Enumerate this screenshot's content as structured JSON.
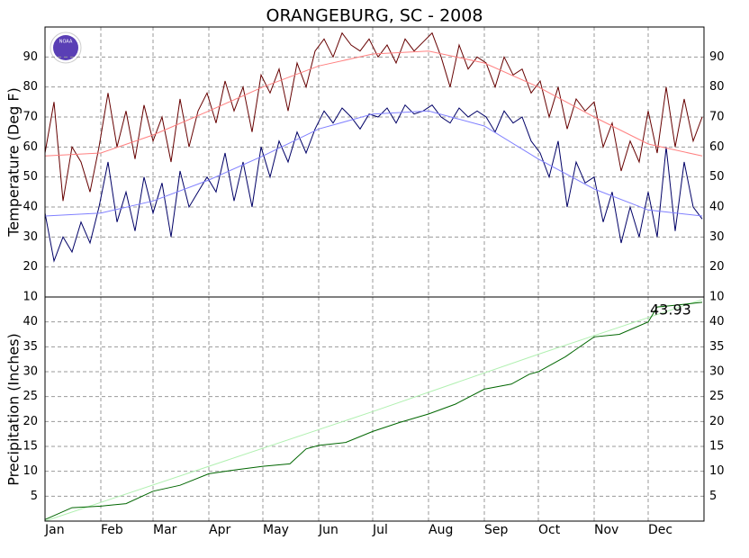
{
  "chart_data": [
    {
      "type": "line",
      "title": "ORANGEBURG, SC - 2008",
      "y_label": "Temperature (Deg F)",
      "logo_text": "NOAA",
      "xlim": [
        1,
        367
      ],
      "ylim": [
        10,
        100
      ],
      "yticks": [
        10,
        20,
        30,
        40,
        50,
        60,
        70,
        80,
        90
      ],
      "grid": true,
      "series": [
        {
          "color": "#660000",
          "x": [
            1,
            6,
            11,
            16,
            21,
            26,
            31,
            36,
            41,
            46,
            51,
            56,
            61,
            66,
            71,
            76,
            81,
            86,
            91,
            96,
            101,
            106,
            111,
            116,
            121,
            126,
            131,
            136,
            141,
            146,
            151,
            156,
            161,
            166,
            171,
            176,
            181,
            186,
            191,
            196,
            201,
            206,
            211,
            216,
            221,
            226,
            231,
            236,
            241,
            246,
            251,
            256,
            261,
            266,
            271,
            276,
            281,
            286,
            291,
            296,
            301,
            306,
            311,
            316,
            321,
            326,
            331,
            336,
            341,
            346,
            351,
            356,
            361,
            366
          ],
          "values": [
            58,
            75,
            42,
            60,
            55,
            45,
            60,
            78,
            60,
            72,
            56,
            74,
            62,
            70,
            55,
            76,
            60,
            72,
            78,
            68,
            82,
            72,
            80,
            65,
            84,
            78,
            86,
            72,
            88,
            80,
            92,
            96,
            90,
            98,
            94,
            92,
            96,
            90,
            94,
            88,
            96,
            92,
            95,
            98,
            90,
            80,
            94,
            86,
            90,
            88,
            80,
            90,
            84,
            86,
            78,
            82,
            70,
            80,
            66,
            76,
            72,
            75,
            60,
            68,
            52,
            62,
            55,
            72,
            58,
            80,
            60,
            76,
            62,
            70
          ]
        },
        {
          "color": "#000066",
          "x": [
            1,
            6,
            11,
            16,
            21,
            26,
            31,
            36,
            41,
            46,
            51,
            56,
            61,
            66,
            71,
            76,
            81,
            86,
            91,
            96,
            101,
            106,
            111,
            116,
            121,
            126,
            131,
            136,
            141,
            146,
            151,
            156,
            161,
            166,
            171,
            176,
            181,
            186,
            191,
            196,
            201,
            206,
            211,
            216,
            221,
            226,
            231,
            236,
            241,
            246,
            251,
            256,
            261,
            266,
            271,
            276,
            281,
            286,
            291,
            296,
            301,
            306,
            311,
            316,
            321,
            326,
            331,
            336,
            341,
            346,
            351,
            356,
            361,
            366
          ],
          "values": [
            38,
            22,
            30,
            25,
            35,
            28,
            40,
            55,
            35,
            45,
            32,
            50,
            38,
            48,
            30,
            52,
            40,
            45,
            50,
            45,
            58,
            42,
            55,
            40,
            60,
            50,
            62,
            55,
            65,
            58,
            66,
            72,
            68,
            73,
            70,
            66,
            71,
            70,
            73,
            68,
            74,
            71,
            72,
            74,
            70,
            68,
            73,
            70,
            72,
            70,
            65,
            72,
            68,
            70,
            62,
            58,
            50,
            62,
            40,
            55,
            48,
            50,
            35,
            45,
            28,
            40,
            30,
            45,
            30,
            60,
            32,
            55,
            40,
            36
          ]
        },
        {
          "color": "#ff8080",
          "x": [
            1,
            32,
            61,
            92,
            122,
            153,
            183,
            214,
            245,
            275,
            306,
            336,
            366
          ],
          "values": [
            57,
            58,
            64,
            72,
            80,
            87,
            91,
            92,
            88,
            80,
            70,
            61,
            57
          ]
        },
        {
          "color": "#8080ff",
          "x": [
            1,
            32,
            61,
            92,
            122,
            153,
            183,
            214,
            245,
            275,
            306,
            336,
            366
          ],
          "values": [
            37,
            38,
            42,
            49,
            57,
            66,
            71,
            72,
            67,
            56,
            46,
            39,
            37
          ]
        }
      ]
    },
    {
      "type": "line",
      "y_label": "Precipitation (Inches)",
      "annotation": "43.93",
      "xlim": [
        1,
        367
      ],
      "ylim": [
        0,
        45
      ],
      "yticks": [
        5,
        10,
        15,
        20,
        25,
        30,
        35,
        40
      ],
      "grid": true,
      "xticks": [
        {
          "value": 1,
          "label": "Jan"
        },
        {
          "value": 32,
          "label": "Feb"
        },
        {
          "value": 61,
          "label": "Mar"
        },
        {
          "value": 92,
          "label": "Apr"
        },
        {
          "value": 122,
          "label": "May"
        },
        {
          "value": 153,
          "label": "Jun"
        },
        {
          "value": 183,
          "label": "Jul"
        },
        {
          "value": 214,
          "label": "Aug"
        },
        {
          "value": 245,
          "label": "Sep"
        },
        {
          "value": 275,
          "label": "Oct"
        },
        {
          "value": 306,
          "label": "Nov"
        },
        {
          "value": 336,
          "label": "Dec"
        }
      ],
      "series": [
        {
          "color": "#b0f0b0",
          "x": [
            1,
            92,
            183,
            275,
            366
          ],
          "values": [
            0,
            11,
            22,
            33.5,
            44.5
          ]
        },
        {
          "color": "#006600",
          "x": [
            1,
            16,
            32,
            46,
            61,
            76,
            92,
            107,
            122,
            137,
            146,
            153,
            168,
            183,
            198,
            214,
            229,
            245,
            260,
            270,
            275,
            290,
            306,
            320,
            336,
            341,
            350,
            366
          ],
          "values": [
            0.3,
            2.7,
            3.0,
            3.5,
            6.0,
            7.2,
            9.5,
            10.3,
            11.0,
            11.5,
            14.5,
            15.2,
            15.8,
            18.0,
            19.8,
            21.5,
            23.5,
            26.5,
            27.5,
            29.5,
            30.0,
            33.0,
            37.0,
            37.5,
            40.0,
            43.0,
            43.3,
            43.93
          ]
        }
      ]
    }
  ]
}
